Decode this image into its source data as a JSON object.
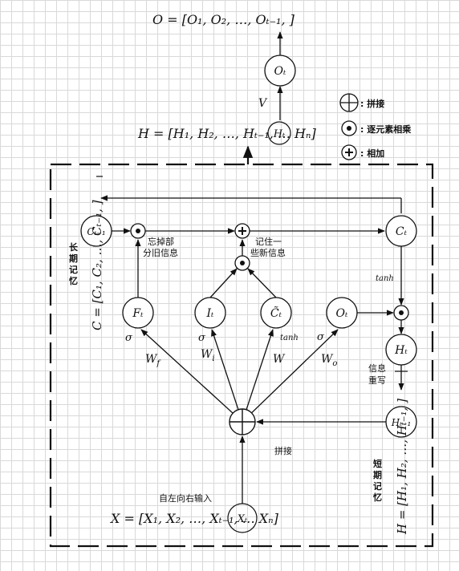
{
  "equations": {
    "output_sequence": "O = [O₁, O₂, …, Oₜ₋₁,     ]",
    "hidden_sequence": "H = [H₁, H₂, …, Hₜ₋₁,        … Hₙ]",
    "cell_sequence": "C = [C₁, C₂, …, Cₜ₋₁,     ]",
    "short_term_sequence": "H = [H₁, H₂, …, Hₜ₋₁,      ]",
    "input_sequence": "X = [X₁, X₂, …, Xₜ₋₁,        … Xₙ]"
  },
  "nodes": {
    "o_t_top": "Oₜ",
    "h_t_top": "Hₜ",
    "c_prev": "Cₜ₋₁",
    "c_t": "Cₜ",
    "f_t": "Fₜ",
    "i_t": "Iₜ",
    "c_tilde": "C̃ₜ",
    "o_t": "Oₜ",
    "h_t": "Hₜ",
    "h_prev": "Hₜ₋₁",
    "x_t": "Xₜ"
  },
  "edge_labels": {
    "v": "V",
    "w_f": "W",
    "w_f_sub": "f",
    "w_i": "W",
    "w_i_sub": "i",
    "w": "W",
    "w_o": "W",
    "w_o_sub": "o",
    "sigma_f": "σ",
    "sigma_i": "σ",
    "tanh_c": "tanh",
    "sigma_o": "σ",
    "tanh_out": "tanh"
  },
  "legend": {
    "concat": ": 拼接",
    "elementwise_mul": ": 逐元素相乘",
    "add": ": 相加"
  },
  "annotations": {
    "forget_line1": "忘掉部",
    "forget_line2": "分旧信息",
    "remember_line1": "记住一",
    "remember_line2": "些新信息",
    "long_term_1": "长",
    "long_term_2": "期",
    "long_term_3": "记",
    "long_term_4": "忆",
    "short_term_1": "短",
    "short_term_2": "期",
    "short_term_3": "记",
    "short_term_4": "忆",
    "info_line1": "信息",
    "info_line2": "重写",
    "concat_label": "拼接",
    "input_direction": "自左向右输入"
  }
}
